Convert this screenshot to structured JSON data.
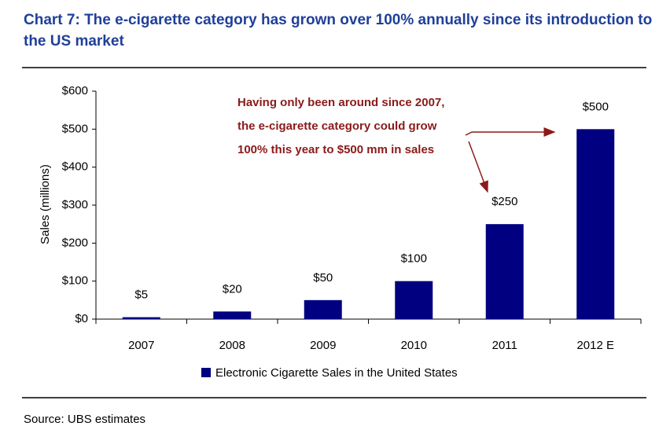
{
  "chart_data": {
    "type": "bar",
    "title": "Chart 7: The e-cigarette category has grown over 100% annually since its introduction to the US market",
    "y_label": "Sales (millions)",
    "categories": [
      "2007",
      "2008",
      "2009",
      "2010",
      "2011",
      "2012 E"
    ],
    "series": [
      {
        "name": "Electronic Cigarette Sales in the United States",
        "color": "#000080",
        "values": [
          5,
          20,
          50,
          100,
          250,
          500
        ],
        "value_labels": [
          "$5",
          "$20",
          "$50",
          "$100",
          "$250",
          "$500"
        ]
      }
    ],
    "ylim": [
      0,
      600
    ],
    "yticks": [
      {
        "value": 0,
        "label": "$0"
      },
      {
        "value": 100,
        "label": "$100"
      },
      {
        "value": 200,
        "label": "$200"
      },
      {
        "value": 300,
        "label": "$300"
      },
      {
        "value": 400,
        "label": "$400"
      },
      {
        "value": 500,
        "label": "$500"
      },
      {
        "value": 600,
        "label": "$600"
      }
    ],
    "annotation": [
      "Having only been around since 2007,",
      "the e-cigarette category could grow",
      "100% this year to $500 mm in sales"
    ],
    "source": "Source: UBS estimates",
    "legend": "bottom"
  }
}
